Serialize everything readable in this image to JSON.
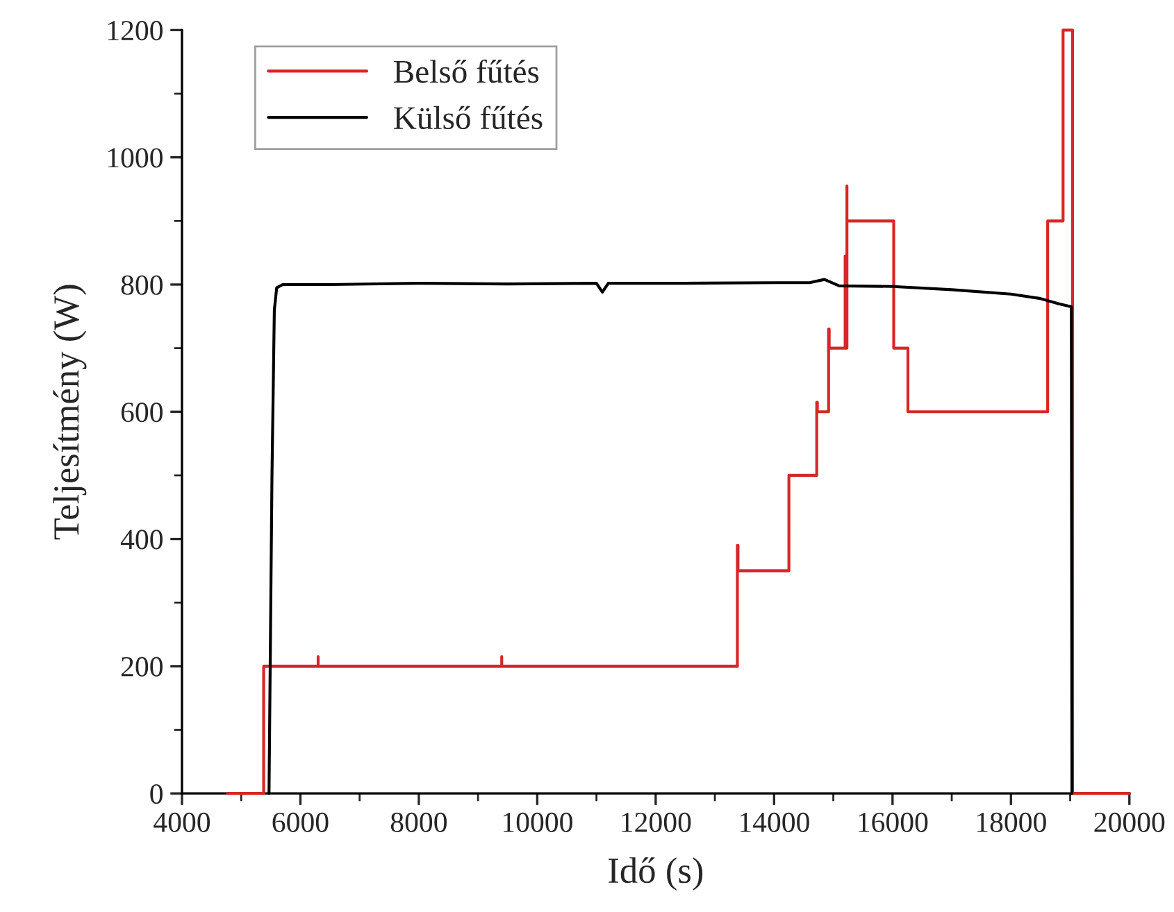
{
  "chart_data": {
    "type": "line",
    "xlabel": "Idő (s)",
    "ylabel": "Teljesítmény (W)",
    "xlim": [
      4000,
      20000
    ],
    "xticks": [
      4000,
      6000,
      8000,
      10000,
      12000,
      14000,
      16000,
      18000,
      20000
    ],
    "ylim": [
      0,
      1200
    ],
    "yticks": [
      0,
      200,
      400,
      600,
      800,
      1000,
      1200
    ],
    "grid": false,
    "legend": "top left",
    "marker": "none",
    "line_style": "solid",
    "series": [
      {
        "name": "Belső fűtés",
        "color": "#d62728",
        "x": [
          4770,
          5380,
          5380,
          6300,
          6300,
          6300,
          9400,
          9400,
          9400,
          13380,
          13380,
          13390,
          13390,
          14250,
          14250,
          14720,
          14720,
          14730,
          14730,
          14920,
          14920,
          14930,
          14930,
          15200,
          15200,
          15210,
          15210,
          15230,
          15230,
          15230,
          16020,
          16020,
          16260,
          16260,
          18620,
          18620,
          18880,
          18880,
          19040,
          19040,
          20000
        ],
        "values": [
          0,
          0,
          200,
          200,
          215,
          200,
          200,
          215,
          200,
          200,
          390,
          390,
          350,
          350,
          500,
          500,
          615,
          615,
          600,
          600,
          730,
          730,
          700,
          700,
          845,
          845,
          700,
          700,
          955,
          900,
          900,
          700,
          700,
          600,
          600,
          900,
          900,
          1200,
          1200,
          0,
          0
        ]
      },
      {
        "name": "Külső fűtés",
        "color": "#000000",
        "x": [
          5470,
          5520,
          5560,
          5600,
          5700,
          6500,
          8000,
          9500,
          11000,
          11100,
          11200,
          12500,
          14000,
          14600,
          14850,
          15100,
          16000,
          17000,
          18000,
          18500,
          18800,
          19020,
          19030
        ],
        "values": [
          0,
          500,
          760,
          795,
          800,
          800,
          802,
          801,
          802,
          788,
          802,
          802,
          803,
          803,
          808,
          798,
          797,
          792,
          785,
          778,
          770,
          765,
          0
        ]
      }
    ]
  }
}
